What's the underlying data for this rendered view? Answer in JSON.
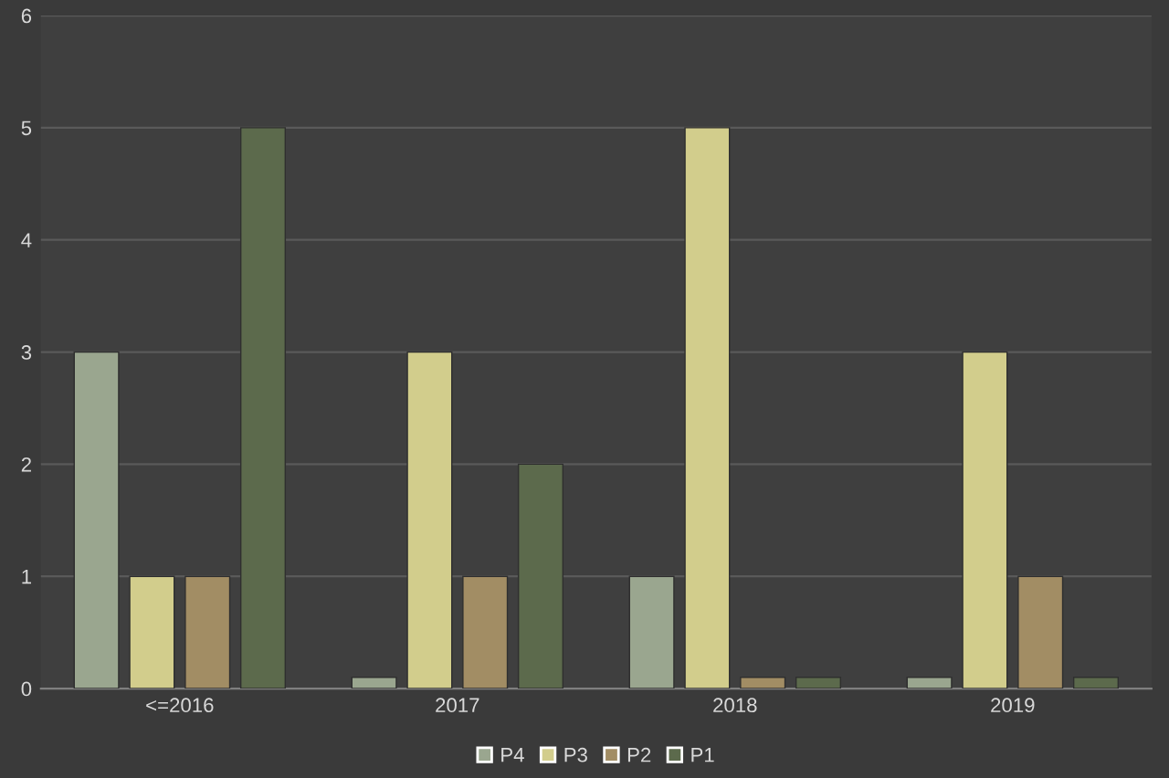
{
  "chart_data": {
    "type": "bar",
    "categories": [
      "<=2016",
      "2017",
      "2018",
      "2019"
    ],
    "series": [
      {
        "name": "P4",
        "color": "#9aa68f",
        "values": [
          3,
          0.1,
          1,
          0.1
        ]
      },
      {
        "name": "P3",
        "color": "#d2cd8c",
        "values": [
          1,
          3,
          5,
          3
        ]
      },
      {
        "name": "P2",
        "color": "#a28d64",
        "values": [
          1,
          1,
          0.1,
          1
        ]
      },
      {
        "name": "P1",
        "color": "#5c6a4c",
        "values": [
          5,
          2,
          0.1,
          0.1
        ]
      }
    ],
    "ylim": [
      0,
      6
    ],
    "yticks": [
      0,
      1,
      2,
      3,
      4,
      5,
      6
    ],
    "grid": "y",
    "legend": "bottom"
  }
}
